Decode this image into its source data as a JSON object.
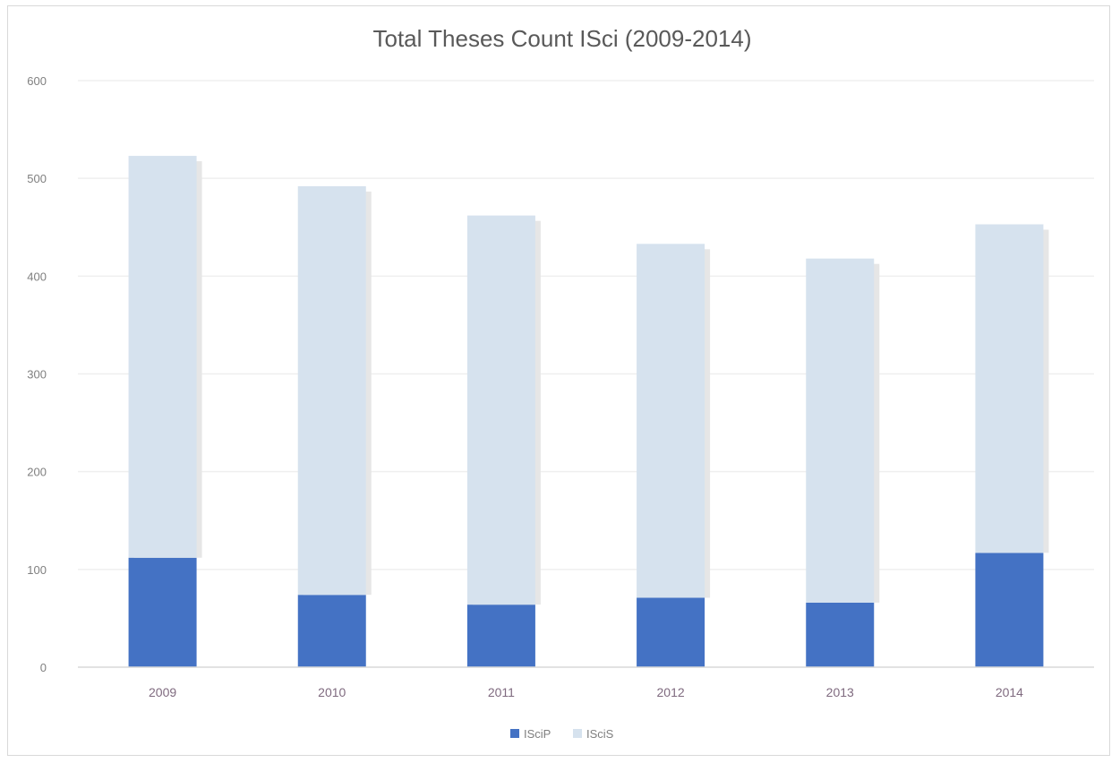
{
  "chart_data": {
    "type": "bar",
    "stacked": true,
    "title": "Total Theses Count ISci (2009-2014)",
    "xlabel": "",
    "ylabel": "",
    "categories": [
      "2009",
      "2010",
      "2011",
      "2012",
      "2013",
      "2014"
    ],
    "series": [
      {
        "name": "ISciP",
        "color": "#4472c4",
        "values": [
          112,
          74,
          64,
          71,
          66,
          117
        ]
      },
      {
        "name": "ISciS",
        "color": "#d6e2ee",
        "values": [
          411,
          418,
          398,
          362,
          352,
          336
        ]
      }
    ],
    "ylim": [
      0,
      600
    ],
    "yticks": [
      0,
      100,
      200,
      300,
      400,
      500,
      600
    ],
    "grid": true,
    "legend": "bottom"
  }
}
